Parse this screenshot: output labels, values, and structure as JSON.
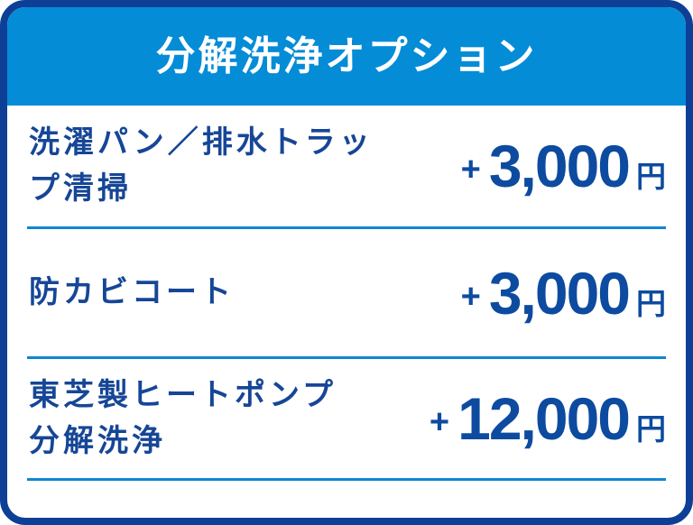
{
  "card": {
    "title": "分解洗浄オプション",
    "options": [
      {
        "label": "洗濯パン／排水トラッ\nプ清掃",
        "plus": "+",
        "amount": "3,000",
        "unit": "円"
      },
      {
        "label": "防カビコート",
        "plus": "+",
        "amount": "3,000",
        "unit": "円"
      },
      {
        "label": "東芝製ヒートポンプ\n分解洗浄",
        "plus": "+",
        "amount": "12,000",
        "unit": "円"
      }
    ],
    "colors": {
      "border": "#0D3F96",
      "header_bg": "#048CD7",
      "header_text": "#FFFFFF",
      "divider": "#0E87D2",
      "label_text": "#164696",
      "price_text": "#0D4BA0"
    }
  }
}
